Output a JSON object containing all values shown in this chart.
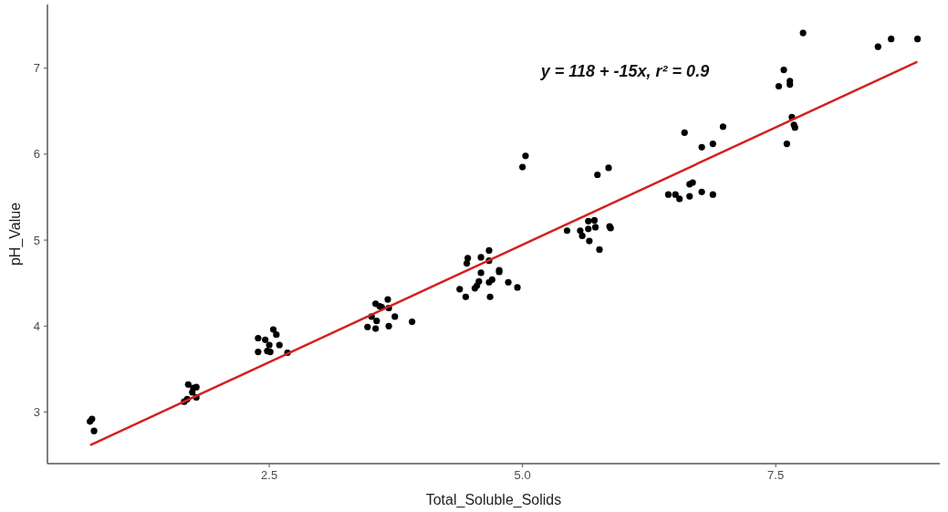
{
  "chart_data": {
    "type": "scatter",
    "xlabel": "Total_Soluble_Solids",
    "ylabel": "pH_Value",
    "annotations": [
      "y = 118 + -15x,  r² = 0.9"
    ],
    "xlim": [
      0.31,
      9.12
    ],
    "ylim": [
      2.4,
      7.74
    ],
    "xticks": [
      {
        "value": 2.5,
        "label": "2.5"
      },
      {
        "value": 5,
        "label": "5.0"
      },
      {
        "value": 7.5,
        "label": "7.5"
      }
    ],
    "yticks": [
      3,
      4,
      5,
      6,
      7
    ],
    "grid": false,
    "series": [
      {
        "marker": "circle",
        "color": "#000000",
        "x": [
          0.73,
          0.75,
          0.77,
          1.7,
          1.75,
          1.78,
          1.74,
          1.66,
          1.69,
          1.78,
          2.39,
          2.39,
          2.48,
          2.5,
          2.54,
          2.57,
          2.51,
          2.6,
          2.68,
          2.46,
          3.55,
          3.59,
          3.61,
          3.67,
          3.68,
          3.51,
          3.56,
          3.74,
          3.47,
          3.55,
          3.68,
          3.91,
          4.46,
          4.45,
          4.59,
          4.67,
          4.67,
          4.59,
          4.77,
          4.77,
          4.7,
          4.67,
          4.57,
          4.55,
          4.53,
          4.38,
          4.44,
          4.68,
          4.86,
          4.95,
          5.03,
          5.0,
          5.44,
          5.57,
          5.59,
          5.65,
          5.71,
          5.65,
          5.72,
          5.66,
          5.76,
          5.86,
          5.87,
          5.74,
          5.85,
          6.44,
          6.51,
          6.55,
          6.65,
          6.65,
          6.68,
          6.77,
          6.88,
          6.6,
          6.77,
          6.88,
          6.98,
          7.66,
          7.68,
          7.69,
          7.61,
          7.58,
          7.53,
          7.64,
          7.64,
          7.77,
          8.51,
          8.64,
          8.9
        ],
        "values": [
          2.89,
          2.92,
          2.78,
          3.32,
          3.28,
          3.29,
          3.23,
          3.12,
          3.15,
          3.17,
          3.86,
          3.7,
          3.71,
          3.78,
          3.96,
          3.9,
          3.7,
          3.78,
          3.69,
          3.84,
          4.26,
          4.23,
          4.22,
          4.31,
          4.21,
          4.11,
          4.06,
          4.11,
          3.99,
          3.97,
          4.0,
          4.05,
          4.79,
          4.73,
          4.8,
          4.88,
          4.76,
          4.62,
          4.65,
          4.63,
          4.54,
          4.51,
          4.52,
          4.47,
          4.44,
          4.43,
          4.34,
          4.34,
          4.51,
          4.45,
          5.98,
          5.85,
          5.11,
          5.11,
          5.05,
          5.22,
          5.23,
          5.13,
          5.15,
          4.99,
          4.89,
          5.16,
          5.14,
          5.76,
          5.84,
          5.53,
          5.53,
          5.48,
          5.51,
          5.65,
          5.67,
          5.56,
          5.53,
          6.25,
          6.08,
          6.12,
          6.32,
          6.43,
          6.34,
          6.31,
          6.12,
          6.98,
          6.79,
          6.85,
          6.81,
          7.41,
          7.25,
          7.34,
          7.34
        ]
      },
      {
        "type": "line",
        "color": "#d42020",
        "line_style": "solid",
        "x": [
          0.74,
          8.89
        ],
        "values": [
          2.62,
          7.07
        ]
      }
    ]
  }
}
